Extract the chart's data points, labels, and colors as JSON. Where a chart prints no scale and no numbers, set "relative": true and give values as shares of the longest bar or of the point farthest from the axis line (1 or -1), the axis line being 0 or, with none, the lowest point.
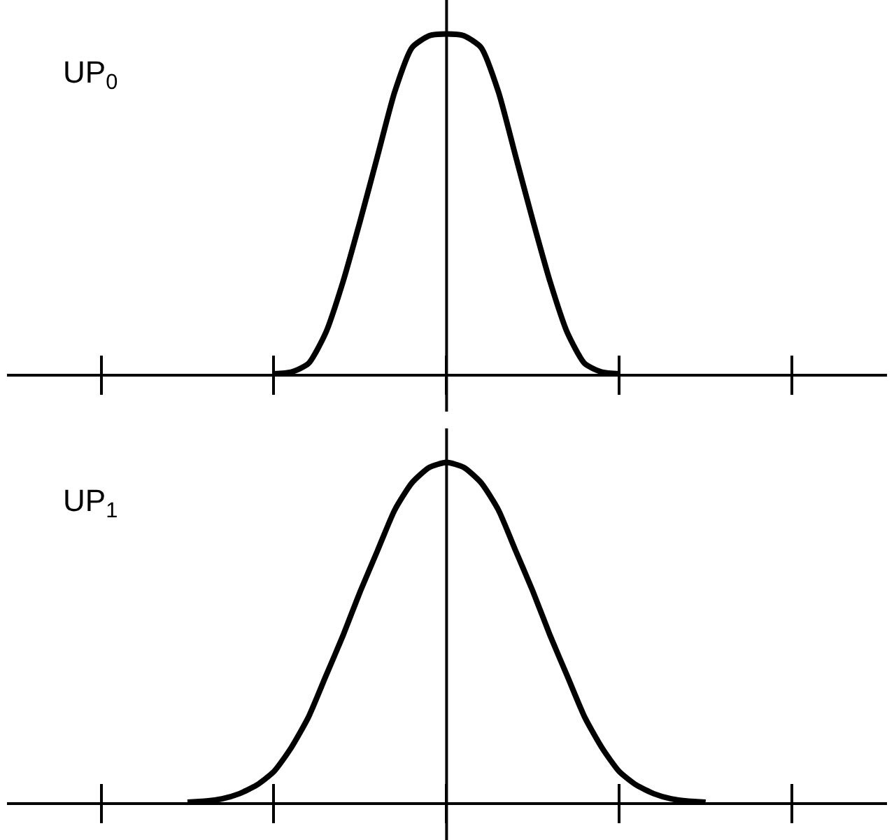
{
  "chart_data": [
    {
      "type": "line",
      "title": "UP$_{0}$",
      "relative": true,
      "marker": "none",
      "line_style": "solid",
      "categories": [
        null,
        null,
        null,
        null,
        null,
        null,
        null,
        null,
        null,
        null,
        null,
        null,
        null,
        null,
        null,
        null,
        null,
        null,
        null,
        null,
        null,
        null,
        null,
        null,
        null,
        null,
        null,
        null,
        null,
        null,
        null,
        null,
        null,
        null,
        null,
        null,
        null,
        null,
        null,
        null,
        null,
        null,
        null,
        null,
        null,
        null,
        null,
        null,
        null,
        null,
        null
      ],
      "series": [
        {
          "color": "#000000",
          "values": [
            null,
            null,
            null,
            null,
            null,
            null,
            null,
            null,
            null,
            null,
            null,
            null,
            null,
            null,
            null,
            0,
            0.005,
            0.03,
            0.12,
            0.27,
            0.45,
            0.64,
            0.83,
            0.96,
            0.995,
            1,
            0.995,
            0.96,
            0.83,
            0.64,
            0.45,
            0.27,
            0.12,
            0.03,
            0.005,
            0,
            null,
            null,
            null,
            null,
            null,
            null,
            null,
            null,
            null,
            null,
            null,
            null,
            null,
            null,
            null
          ]
        }
      ]
    },
    {
      "type": "line",
      "title": "UP$_{1}$",
      "relative": true,
      "marker": "none",
      "line_style": "solid",
      "categories": [
        null,
        null,
        null,
        null,
        null,
        null,
        null,
        null,
        null,
        null,
        null,
        null,
        null,
        null,
        null,
        null,
        null,
        null,
        null,
        null,
        null,
        null,
        null,
        null,
        null,
        null,
        null,
        null,
        null,
        null,
        null,
        null,
        null,
        null,
        null,
        null,
        null,
        null,
        null,
        null,
        null,
        null,
        null,
        null,
        null,
        null,
        null,
        null,
        null,
        null,
        null
      ],
      "series": [
        {
          "color": "#000000",
          "values": [
            null,
            null,
            null,
            null,
            null,
            null,
            null,
            null,
            null,
            null,
            0,
            0.003,
            0.01,
            0.025,
            0.05,
            0.09,
            0.16,
            0.25,
            0.37,
            0.49,
            0.62,
            0.74,
            0.86,
            0.94,
            0.985,
            1,
            0.985,
            0.94,
            0.86,
            0.74,
            0.62,
            0.49,
            0.37,
            0.25,
            0.16,
            0.09,
            0.05,
            0.025,
            0.01,
            0.003,
            0,
            null,
            null,
            null,
            null,
            null,
            null,
            null,
            null,
            null,
            null
          ]
        }
      ]
    }
  ]
}
